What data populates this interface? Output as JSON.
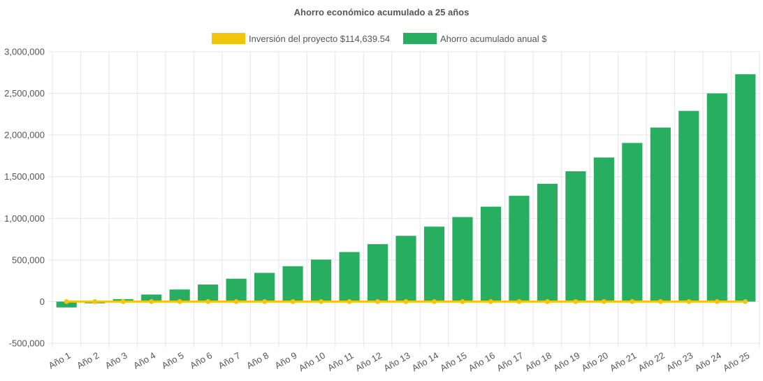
{
  "chart_data": {
    "type": "bar",
    "title": "Ahorro económico acumulado a 25 años",
    "categories": [
      "Año 1",
      "Año 2",
      "Año 3",
      "Año 4",
      "Año 5",
      "Año 6",
      "Año 7",
      "Año 8",
      "Año 9",
      "Año 10",
      "Año 11",
      "Año 12",
      "Año 13",
      "Año 14",
      "Año 15",
      "Año 16",
      "Año 17",
      "Año 18",
      "Año 19",
      "Año 20",
      "Año 21",
      "Año 22",
      "Año 23",
      "Año 24",
      "Año 25"
    ],
    "series": [
      {
        "name": "Inversión del proyecto $114,639.54",
        "kind": "line",
        "color": "#f1c40f",
        "values": [
          0,
          0,
          0,
          0,
          0,
          0,
          0,
          0,
          0,
          0,
          0,
          0,
          0,
          0,
          0,
          0,
          0,
          0,
          0,
          0,
          0,
          0,
          0,
          0,
          0
        ]
      },
      {
        "name": "Ahorro acumulado anual $",
        "kind": "bar",
        "color": "#27ae60",
        "values": [
          -70000,
          -20000,
          30000,
          85000,
          145000,
          205000,
          275000,
          345000,
          425000,
          505000,
          595000,
          690000,
          790000,
          900000,
          1015000,
          1140000,
          1270000,
          1415000,
          1565000,
          1730000,
          1905000,
          2090000,
          2290000,
          2500000,
          2730000
        ]
      }
    ],
    "y_ticks": [
      "3,000,000",
      "2,500,000",
      "2,000,000",
      "1,500,000",
      "1,000,000",
      "500,000",
      "0",
      "-500,000"
    ],
    "y_tick_values": [
      3000000,
      2500000,
      2000000,
      1500000,
      1000000,
      500000,
      0,
      -500000
    ],
    "ylim": [
      -500000,
      3000000
    ],
    "grid": true,
    "legend_position": "top"
  }
}
